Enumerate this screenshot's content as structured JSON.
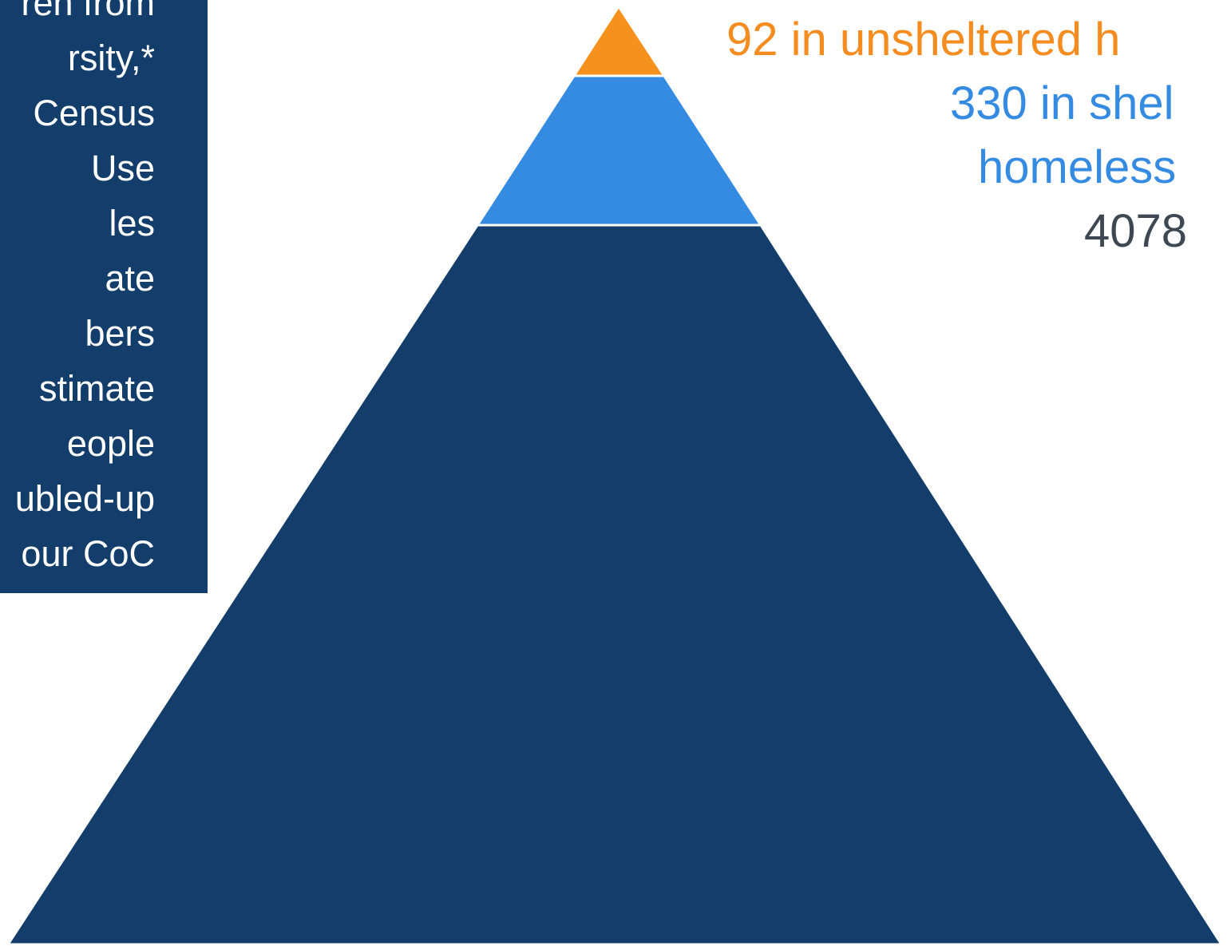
{
  "colors": {
    "box_bg": "#133d6b",
    "box_text": "#ffffff",
    "tier_top": "#f7911d",
    "tier_middle": "#348be1",
    "tier_base": "#133d6b",
    "label_top": "#f58c20",
    "label_middle": "#348be1",
    "label_base": "#3d4852"
  },
  "side_text": {
    "lines": [
      "ren from",
      "rsity,*",
      "Census",
      "Use",
      "les",
      "ate",
      "bers",
      "stimate",
      "eople",
      "ubled-up",
      " our CoC"
    ]
  },
  "pyramid": {
    "tiers": [
      {
        "name": "unsheltered",
        "color_key": "tier_top"
      },
      {
        "name": "sheltered",
        "color_key": "tier_middle"
      },
      {
        "name": "doubled-up",
        "color_key": "tier_base"
      }
    ]
  },
  "labels": {
    "top": "92 in unsheltered h",
    "middle_line1": "330 in shel",
    "middle_line2": "homeless",
    "base": "4078"
  }
}
